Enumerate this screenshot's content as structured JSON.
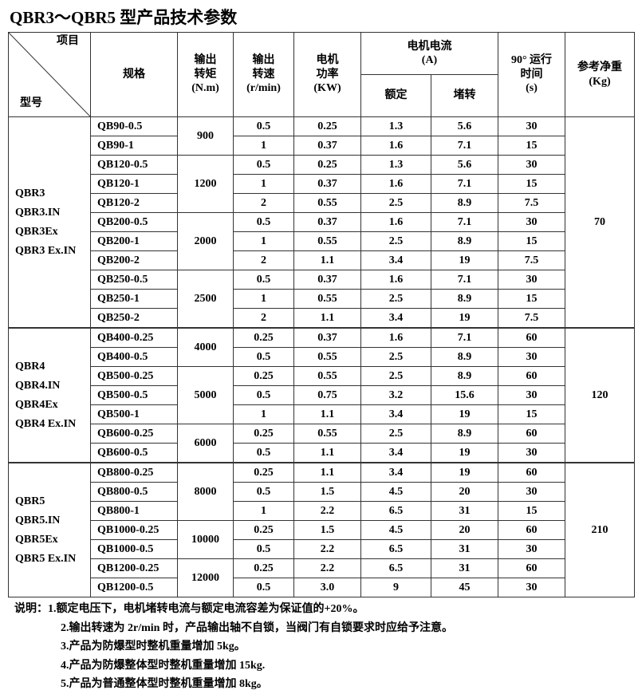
{
  "title": "QBR3～QBR5 型产品技术参数",
  "header": {
    "item": "项目",
    "model": "型号",
    "spec": "规格",
    "torque": "输出\n转矩\n(N.m)",
    "speed": "输出\n转速\n(r/min)",
    "power": "电机\n功率\n(KW)",
    "current": "电机电流\n(A)",
    "rated": "额定",
    "stall": "堵转",
    "time": "90° 运行\n时间\n(s)",
    "weight": "参考净重\n(Kg)"
  },
  "groups": [
    {
      "models": "QBR3\nQBR3.IN\nQBR3Ex\nQBR3 Ex.IN",
      "weight": "70",
      "torques": [
        {
          "torque": "900",
          "rows": [
            [
              "QB90-0.5",
              "0.5",
              "0.25",
              "1.3",
              "5.6",
              "30"
            ],
            [
              "QB90-1",
              "1",
              "0.37",
              "1.6",
              "7.1",
              "15"
            ]
          ]
        },
        {
          "torque": "1200",
          "rows": [
            [
              "QB120-0.5",
              "0.5",
              "0.25",
              "1.3",
              "5.6",
              "30"
            ],
            [
              "QB120-1",
              "1",
              "0.37",
              "1.6",
              "7.1",
              "15"
            ],
            [
              "QB120-2",
              "2",
              "0.55",
              "2.5",
              "8.9",
              "7.5"
            ]
          ]
        },
        {
          "torque": "2000",
          "rows": [
            [
              "QB200-0.5",
              "0.5",
              "0.37",
              "1.6",
              "7.1",
              "30"
            ],
            [
              "QB200-1",
              "1",
              "0.55",
              "2.5",
              "8.9",
              "15"
            ],
            [
              "QB200-2",
              "2",
              "1.1",
              "3.4",
              "19",
              "7.5"
            ]
          ]
        },
        {
          "torque": "2500",
          "rows": [
            [
              "QB250-0.5",
              "0.5",
              "0.37",
              "1.6",
              "7.1",
              "30"
            ],
            [
              "QB250-1",
              "1",
              "0.55",
              "2.5",
              "8.9",
              "15"
            ],
            [
              "QB250-2",
              "2",
              "1.1",
              "3.4",
              "19",
              "7.5"
            ]
          ]
        }
      ]
    },
    {
      "models": "QBR4\nQBR4.IN\nQBR4Ex\nQBR4 Ex.IN",
      "weight": "120",
      "torques": [
        {
          "torque": "4000",
          "rows": [
            [
              "QB400-0.25",
              "0.25",
              "0.37",
              "1.6",
              "7.1",
              "60"
            ],
            [
              "QB400-0.5",
              "0.5",
              "0.55",
              "2.5",
              "8.9",
              "30"
            ]
          ]
        },
        {
          "torque": "5000",
          "rows": [
            [
              "QB500-0.25",
              "0.25",
              "0.55",
              "2.5",
              "8.9",
              "60"
            ],
            [
              "QB500-0.5",
              "0.5",
              "0.75",
              "3.2",
              "15.6",
              "30"
            ],
            [
              "QB500-1",
              "1",
              "1.1",
              "3.4",
              "19",
              "15"
            ]
          ]
        },
        {
          "torque": "6000",
          "rows": [
            [
              "QB600-0.25",
              "0.25",
              "0.55",
              "2.5",
              "8.9",
              "60"
            ],
            [
              "QB600-0.5",
              "0.5",
              "1.1",
              "3.4",
              "19",
              "30"
            ]
          ]
        }
      ]
    },
    {
      "models": "QBR5\nQBR5.IN\nQBR5Ex\nQBR5 Ex.IN",
      "weight": "210",
      "torques": [
        {
          "torque": "8000",
          "rows": [
            [
              "QB800-0.25",
              "0.25",
              "1.1",
              "3.4",
              "19",
              "60"
            ],
            [
              "QB800-0.5",
              "0.5",
              "1.5",
              "4.5",
              "20",
              "30"
            ],
            [
              "QB800-1",
              "1",
              "2.2",
              "6.5",
              "31",
              "15"
            ]
          ]
        },
        {
          "torque": "10000",
          "rows": [
            [
              "QB1000-0.25",
              "0.25",
              "1.5",
              "4.5",
              "20",
              "60"
            ],
            [
              "QB1000-0.5",
              "0.5",
              "2.2",
              "6.5",
              "31",
              "30"
            ]
          ]
        },
        {
          "torque": "12000",
          "rows": [
            [
              "QB1200-0.25",
              "0.25",
              "2.2",
              "6.5",
              "31",
              "60"
            ],
            [
              "QB1200-0.5",
              "0.5",
              "3.0",
              "9",
              "45",
              "30"
            ]
          ]
        }
      ]
    }
  ],
  "notes": {
    "label": "说明：",
    "items": [
      "1.额定电压下，电机堵转电流与额定电流容差为保证值的+20%。",
      "2.输出转速为 2r/min 时，产品输出轴不自锁，当阀门有自锁要求时应给予注意。",
      "3.产品为防爆型时整机重量增加 5kg。",
      "4.产品为防爆整体型时整机重量增加 15kg.",
      "5.产品为普通整体型时整机重量增加 8kg。"
    ]
  }
}
